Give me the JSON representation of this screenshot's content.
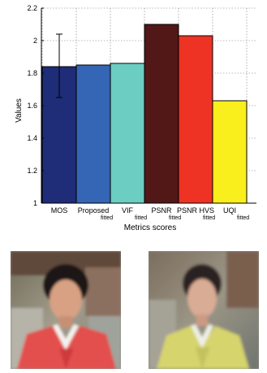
{
  "chart_data": {
    "type": "bar",
    "xlabel": "Metrics scores",
    "ylabel": "Values",
    "ylim": [
      1,
      2.2
    ],
    "yticks": [
      "1",
      "1.2",
      "1.4",
      "1.6",
      "1.8",
      "2",
      "2.2"
    ],
    "grid": true,
    "categories": [
      {
        "main": "MOS",
        "sub": ""
      },
      {
        "main": "Proposed",
        "sub": "fitted"
      },
      {
        "main": "VIF",
        "sub": "fitted"
      },
      {
        "main": "PSNR",
        "sub": "fitted"
      },
      {
        "main": "PSNR HVS",
        "sub": "fitted"
      },
      {
        "main": "UQI",
        "sub": "fitted"
      }
    ],
    "values": [
      1.84,
      1.85,
      1.86,
      2.1,
      2.03,
      1.63
    ],
    "error_bar": {
      "category": "MOS",
      "low": 1.65,
      "high": 2.04
    },
    "colors": [
      "#1f2c78",
      "#3565b5",
      "#6ccdc2",
      "#521717",
      "#ee3324",
      "#f9ef1d"
    ]
  },
  "photos": [
    {
      "name": "left",
      "subject": "portrait-red-hanbok"
    },
    {
      "name": "right",
      "subject": "portrait-yellow-hanbok"
    }
  ]
}
